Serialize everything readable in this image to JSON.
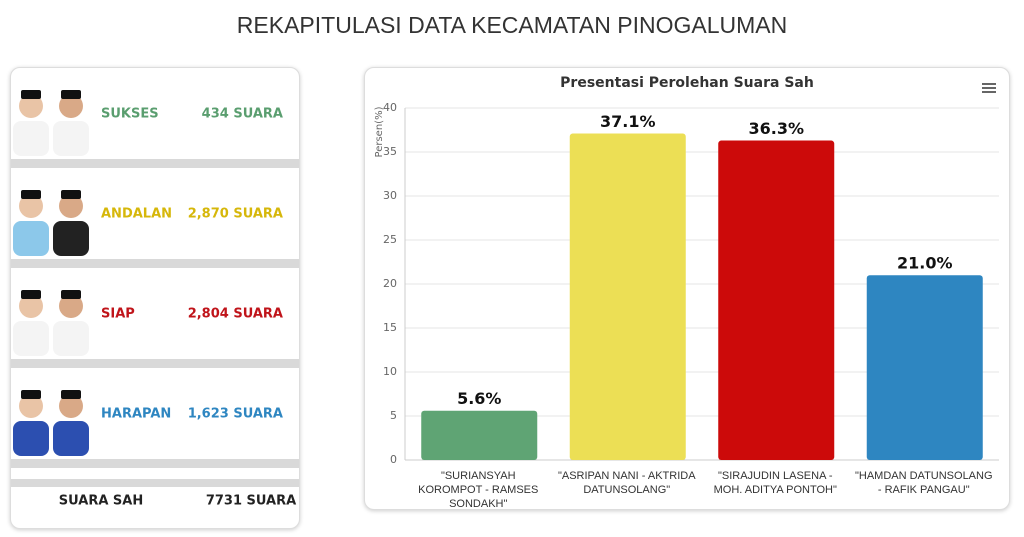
{
  "header": {
    "title": "REKAPITULASI DATA KECAMATAN PINOGALUMAN"
  },
  "candidates": [
    {
      "name": "SUKSES",
      "votes": "434 SUARA",
      "color": "#5a9e6f"
    },
    {
      "name": "ANDALAN",
      "votes": "2,870 SUARA",
      "color": "#d6b70a"
    },
    {
      "name": "SIAP",
      "votes": "2,804 SUARA",
      "color": "#c0141a"
    },
    {
      "name": "HARAPAN",
      "votes": "1,623 SUARA",
      "color": "#2e86c1"
    }
  ],
  "total": {
    "label": "SUARA SAH",
    "value": "7731 SUARA"
  },
  "chart_data": {
    "type": "bar",
    "title": "Presentasi Perolehan Suara Sah",
    "y_label": "Persen(%)",
    "categories": [
      "\"SURIANSYAH KOROMPOT - RAMSES SONDAKH\"",
      "\"ASRIPAN NANI - AKTRIDA DATUNSOLANG\"",
      "\"SIRAJUDIN LASENA - MOH. ADITYA PONTOH\"",
      "\"HAMDAN DATUNSOLANG - RAFIK PANGAU\""
    ],
    "values": [
      5.6,
      37.1,
      36.3,
      21.0
    ],
    "value_labels": [
      "5.6%",
      "37.1%",
      "36.3%",
      "21.0%"
    ],
    "colors": [
      "#5fa474",
      "#ecdf55",
      "#cc0a0a",
      "#2e86c1"
    ],
    "ylim": [
      0,
      40
    ],
    "yticks": [
      0,
      5,
      10,
      15,
      20,
      25,
      30,
      35,
      40
    ],
    "grid": true
  }
}
